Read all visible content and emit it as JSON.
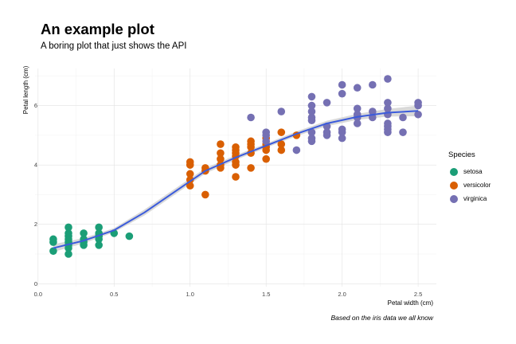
{
  "chart_data": {
    "type": "scatter",
    "title": "An example plot",
    "subtitle": "A boring plot that just shows the API",
    "caption": "Based on the iris data we all know",
    "xlabel": "Petal width (cm)",
    "ylabel": "Petal length (cm)",
    "xlim": [
      -0.02,
      2.62
    ],
    "ylim": [
      -0.1,
      7.25
    ],
    "x_ticks": [
      0.0,
      0.5,
      1.0,
      1.5,
      2.0,
      2.5
    ],
    "x_tick_labels": [
      "0.0",
      "0.5",
      "1.0",
      "1.5",
      "2.0",
      "2.5"
    ],
    "y_ticks": [
      0,
      2,
      4,
      6
    ],
    "y_tick_labels": [
      "0",
      "2",
      "4",
      "6"
    ],
    "grid": true,
    "legend": {
      "title": "Species",
      "position": "right"
    },
    "series": [
      {
        "name": "setosa",
        "color": "#1b9e77",
        "points": [
          [
            0.1,
            1.1
          ],
          [
            0.1,
            1.4
          ],
          [
            0.1,
            1.5
          ],
          [
            0.2,
            1.0
          ],
          [
            0.2,
            1.2
          ],
          [
            0.2,
            1.3
          ],
          [
            0.2,
            1.4
          ],
          [
            0.2,
            1.5
          ],
          [
            0.2,
            1.6
          ],
          [
            0.2,
            1.7
          ],
          [
            0.2,
            1.9
          ],
          [
            0.3,
            1.3
          ],
          [
            0.3,
            1.4
          ],
          [
            0.3,
            1.5
          ],
          [
            0.3,
            1.7
          ],
          [
            0.4,
            1.3
          ],
          [
            0.4,
            1.5
          ],
          [
            0.4,
            1.6
          ],
          [
            0.4,
            1.7
          ],
          [
            0.4,
            1.9
          ],
          [
            0.5,
            1.7
          ],
          [
            0.6,
            1.6
          ]
        ]
      },
      {
        "name": "versicolor",
        "color": "#d95f02",
        "points": [
          [
            1.0,
            3.3
          ],
          [
            1.0,
            3.5
          ],
          [
            1.0,
            3.7
          ],
          [
            1.0,
            4.0
          ],
          [
            1.0,
            4.1
          ],
          [
            1.1,
            3.0
          ],
          [
            1.1,
            3.8
          ],
          [
            1.1,
            3.9
          ],
          [
            1.2,
            3.9
          ],
          [
            1.2,
            4.0
          ],
          [
            1.2,
            4.2
          ],
          [
            1.2,
            4.4
          ],
          [
            1.2,
            4.7
          ],
          [
            1.3,
            3.6
          ],
          [
            1.3,
            4.0
          ],
          [
            1.3,
            4.1
          ],
          [
            1.3,
            4.3
          ],
          [
            1.3,
            4.4
          ],
          [
            1.3,
            4.5
          ],
          [
            1.3,
            4.6
          ],
          [
            1.4,
            3.9
          ],
          [
            1.4,
            4.4
          ],
          [
            1.4,
            4.6
          ],
          [
            1.4,
            4.7
          ],
          [
            1.4,
            4.8
          ],
          [
            1.5,
            4.2
          ],
          [
            1.5,
            4.5
          ],
          [
            1.5,
            4.6
          ],
          [
            1.5,
            4.7
          ],
          [
            1.5,
            4.9
          ],
          [
            1.6,
            4.5
          ],
          [
            1.6,
            4.7
          ],
          [
            1.6,
            5.1
          ],
          [
            1.7,
            5.0
          ]
        ]
      },
      {
        "name": "virginica",
        "color": "#7570b3",
        "points": [
          [
            1.4,
            5.6
          ],
          [
            1.5,
            4.8
          ],
          [
            1.5,
            5.0
          ],
          [
            1.5,
            5.1
          ],
          [
            1.6,
            5.8
          ],
          [
            1.7,
            4.5
          ],
          [
            1.8,
            4.8
          ],
          [
            1.8,
            4.9
          ],
          [
            1.8,
            5.1
          ],
          [
            1.8,
            5.5
          ],
          [
            1.8,
            5.6
          ],
          [
            1.8,
            5.8
          ],
          [
            1.8,
            6.0
          ],
          [
            1.8,
            6.3
          ],
          [
            1.9,
            5.0
          ],
          [
            1.9,
            5.1
          ],
          [
            1.9,
            5.3
          ],
          [
            1.9,
            6.1
          ],
          [
            2.0,
            4.9
          ],
          [
            2.0,
            5.1
          ],
          [
            2.0,
            5.2
          ],
          [
            2.0,
            6.4
          ],
          [
            2.0,
            6.7
          ],
          [
            2.1,
            5.4
          ],
          [
            2.1,
            5.6
          ],
          [
            2.1,
            5.7
          ],
          [
            2.1,
            5.9
          ],
          [
            2.1,
            6.6
          ],
          [
            2.2,
            5.6
          ],
          [
            2.2,
            5.8
          ],
          [
            2.2,
            6.7
          ],
          [
            2.3,
            5.1
          ],
          [
            2.3,
            5.2
          ],
          [
            2.3,
            5.3
          ],
          [
            2.3,
            5.4
          ],
          [
            2.3,
            5.7
          ],
          [
            2.3,
            5.9
          ],
          [
            2.3,
            6.1
          ],
          [
            2.3,
            6.9
          ],
          [
            2.4,
            5.1
          ],
          [
            2.4,
            5.6
          ],
          [
            2.5,
            5.7
          ],
          [
            2.5,
            6.0
          ],
          [
            2.5,
            6.1
          ]
        ]
      }
    ],
    "smooth": {
      "color": "#3b5bdb",
      "band_color": "#cccccc",
      "x": [
        0.1,
        0.3,
        0.5,
        0.7,
        0.9,
        1.1,
        1.3,
        1.5,
        1.7,
        1.9,
        2.1,
        2.3,
        2.5
      ],
      "y": [
        1.2,
        1.45,
        1.8,
        2.4,
        3.1,
        3.8,
        4.25,
        4.65,
        5.05,
        5.4,
        5.62,
        5.76,
        5.82
      ],
      "ymin": [
        1.07,
        1.36,
        1.73,
        2.3,
        3.0,
        3.71,
        4.17,
        4.58,
        4.97,
        5.31,
        5.52,
        5.63,
        5.64
      ],
      "ymax": [
        1.33,
        1.54,
        1.87,
        2.5,
        3.2,
        3.89,
        4.33,
        4.72,
        5.13,
        5.49,
        5.72,
        5.89,
        6.0
      ]
    }
  }
}
